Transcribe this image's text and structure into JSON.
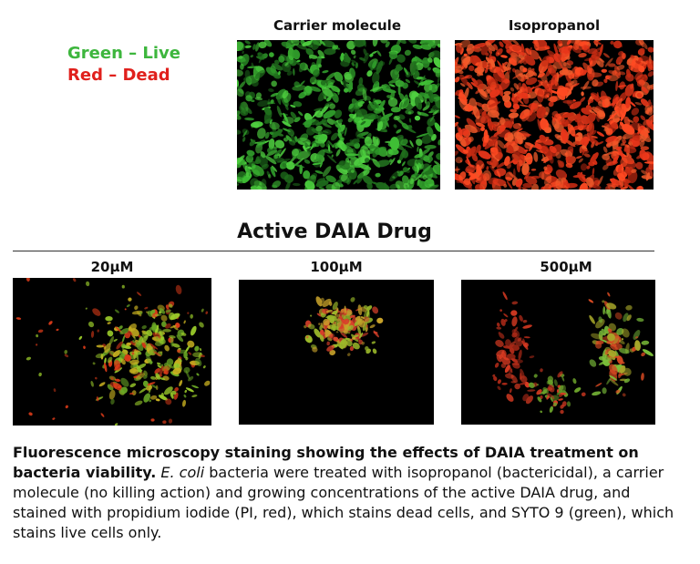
{
  "legend": {
    "live": "Green – Live",
    "dead": "Red – Dead"
  },
  "controls": [
    {
      "label": "Carrier molecule"
    },
    {
      "label": "Isopropanol"
    }
  ],
  "section_title": "Active DAIA Drug",
  "concentrations": [
    {
      "label": "20μM"
    },
    {
      "label": "100μM"
    },
    {
      "label": "500μM"
    }
  ],
  "caption": {
    "bold": "Fluorescence microscopy staining showing the effects of DAIA treatment on bacteria viability.",
    "italic": "E. coli",
    "text": "bacteria were treated with isopropanol (bactericidal), a carrier molecule (no killing action) and growing concentrations of the active DAIA drug, and stained with propidium iodide (PI, red), which stains dead cells, and SYTO 9 (green), which stains live cells only."
  }
}
